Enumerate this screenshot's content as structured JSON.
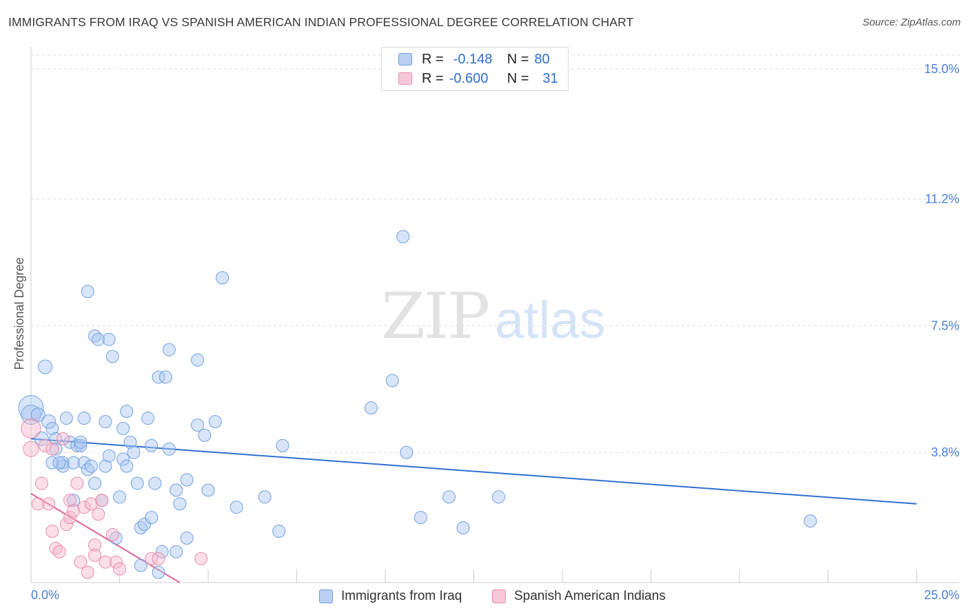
{
  "title": "IMMIGRANTS FROM IRAQ VS SPANISH AMERICAN INDIAN PROFESSIONAL DEGREE CORRELATION CHART",
  "source": "Source: ZipAtlas.com",
  "watermark": {
    "zip": "ZIP",
    "atlas": "atlas"
  },
  "legend": {
    "r_label": "R =",
    "n_label": "N =",
    "rows": [
      {
        "r": "-0.148",
        "n": "80",
        "color": "#a9c6f0",
        "border": "#6f9fe0"
      },
      {
        "r": "-0.600",
        "n": "31",
        "color": "#f6b8cb",
        "border": "#e889a8"
      }
    ]
  },
  "bottom_legend": [
    {
      "label": "Immigrants from Iraq",
      "color": "#b9d0f3",
      "border": "#6f9fe0"
    },
    {
      "label": "Spanish American Indians",
      "color": "#f8c8d6",
      "border": "#e889a8"
    }
  ],
  "chart_data": {
    "type": "scatter",
    "title": "IMMIGRANTS FROM IRAQ VS SPANISH AMERICAN INDIAN PROFESSIONAL DEGREE CORRELATION CHART",
    "xlabel": "",
    "ylabel": "Professional Degree",
    "xlim": [
      0,
      25
    ],
    "ylim": [
      0,
      15.4
    ],
    "x_tick_labels": [
      "0.0%",
      "25.0%"
    ],
    "y_ticks": [
      3.8,
      7.5,
      11.2,
      15.0
    ],
    "y_tick_labels": [
      "3.8%",
      "7.5%",
      "11.2%",
      "15.0%"
    ],
    "grid": true,
    "series": [
      {
        "name": "Immigrants from Iraq",
        "color": "#a9c6f0",
        "stroke": "#6f9fe0",
        "trend": {
          "x": [
            0,
            25
          ],
          "y": [
            4.2,
            2.3
          ],
          "color": "#2e6fd1"
        },
        "points": [
          [
            0.0,
            5.1,
            18
          ],
          [
            0.0,
            4.9,
            14
          ],
          [
            0.2,
            4.9,
            10
          ],
          [
            0.4,
            6.3,
            10
          ],
          [
            0.5,
            4.7,
            10
          ],
          [
            0.3,
            4.2,
            10
          ],
          [
            0.6,
            4.5,
            9
          ],
          [
            0.7,
            4.2,
            9
          ],
          [
            0.6,
            3.5,
            9
          ],
          [
            0.7,
            3.9,
            9
          ],
          [
            0.9,
            3.5,
            9
          ],
          [
            0.9,
            3.4,
            9
          ],
          [
            1.0,
            4.8,
            9
          ],
          [
            1.1,
            4.1,
            9
          ],
          [
            1.2,
            3.5,
            9
          ],
          [
            1.2,
            2.4,
            9
          ],
          [
            1.3,
            4.0,
            9
          ],
          [
            1.4,
            4.0,
            9
          ],
          [
            1.4,
            4.1,
            9
          ],
          [
            1.5,
            3.5,
            9
          ],
          [
            1.5,
            4.8,
            9
          ],
          [
            1.6,
            3.3,
            9
          ],
          [
            1.6,
            8.5,
            9
          ],
          [
            1.7,
            3.4,
            9
          ],
          [
            1.8,
            2.9,
            9
          ],
          [
            1.8,
            7.2,
            9
          ],
          [
            1.9,
            7.1,
            9
          ],
          [
            2.0,
            2.4,
            9
          ],
          [
            2.1,
            3.4,
            9
          ],
          [
            2.1,
            4.7,
            9
          ],
          [
            2.2,
            3.7,
            9
          ],
          [
            2.2,
            7.1,
            9
          ],
          [
            2.3,
            6.6,
            9
          ],
          [
            2.4,
            1.3,
            9
          ],
          [
            2.5,
            2.5,
            9
          ],
          [
            2.6,
            4.5,
            9
          ],
          [
            2.6,
            3.6,
            9
          ],
          [
            2.7,
            3.4,
            9
          ],
          [
            2.7,
            5.0,
            9
          ],
          [
            2.8,
            4.1,
            9
          ],
          [
            2.9,
            3.8,
            9
          ],
          [
            3.0,
            2.9,
            9
          ],
          [
            3.1,
            0.5,
            9
          ],
          [
            3.1,
            1.6,
            9
          ],
          [
            3.2,
            1.7,
            9
          ],
          [
            3.3,
            4.8,
            9
          ],
          [
            3.4,
            4.0,
            9
          ],
          [
            3.4,
            1.9,
            9
          ],
          [
            3.5,
            2.9,
            9
          ],
          [
            3.6,
            0.3,
            9
          ],
          [
            3.6,
            6.0,
            9
          ],
          [
            3.7,
            0.9,
            9
          ],
          [
            3.8,
            6.0,
            9
          ],
          [
            3.9,
            6.8,
            9
          ],
          [
            3.9,
            3.9,
            9
          ],
          [
            4.1,
            0.9,
            9
          ],
          [
            4.1,
            2.7,
            9
          ],
          [
            4.2,
            2.3,
            9
          ],
          [
            4.4,
            1.3,
            9
          ],
          [
            4.4,
            3.0,
            9
          ],
          [
            4.7,
            4.6,
            9
          ],
          [
            4.7,
            6.5,
            9
          ],
          [
            4.9,
            4.3,
            9
          ],
          [
            5.0,
            2.7,
            9
          ],
          [
            5.2,
            4.7,
            9
          ],
          [
            5.4,
            8.9,
            9
          ],
          [
            5.8,
            2.2,
            9
          ],
          [
            6.6,
            2.5,
            9
          ],
          [
            7.0,
            1.5,
            9
          ],
          [
            7.1,
            4.0,
            9
          ],
          [
            9.6,
            5.1,
            9
          ],
          [
            10.2,
            5.9,
            9
          ],
          [
            10.5,
            10.1,
            9
          ],
          [
            10.6,
            3.8,
            9
          ],
          [
            11.0,
            1.9,
            9
          ],
          [
            11.8,
            2.5,
            9
          ],
          [
            12.2,
            1.6,
            9
          ],
          [
            13.2,
            2.5,
            9
          ],
          [
            22.0,
            1.8,
            9
          ],
          [
            0.8,
            3.5,
            9
          ]
        ]
      },
      {
        "name": "Spanish American Indians",
        "color": "#f6b8cb",
        "stroke": "#e889a8",
        "trend": {
          "x": [
            0,
            4.2
          ],
          "y": [
            2.6,
            0.0
          ],
          "color": "#e0609a"
        },
        "points": [
          [
            0.0,
            4.5,
            14
          ],
          [
            0.0,
            3.9,
            11
          ],
          [
            0.2,
            2.3,
            9
          ],
          [
            0.3,
            2.9,
            9
          ],
          [
            0.4,
            4.0,
            9
          ],
          [
            0.5,
            2.3,
            9
          ],
          [
            0.6,
            1.5,
            9
          ],
          [
            0.6,
            3.9,
            9
          ],
          [
            0.7,
            1.0,
            9
          ],
          [
            0.8,
            0.9,
            9
          ],
          [
            0.9,
            4.2,
            9
          ],
          [
            1.0,
            1.7,
            9
          ],
          [
            1.1,
            1.9,
            9
          ],
          [
            1.1,
            2.4,
            9
          ],
          [
            1.2,
            2.1,
            9
          ],
          [
            1.3,
            2.9,
            9
          ],
          [
            1.4,
            0.6,
            9
          ],
          [
            1.5,
            2.2,
            9
          ],
          [
            1.6,
            0.3,
            9
          ],
          [
            1.7,
            2.3,
            9
          ],
          [
            1.8,
            1.1,
            9
          ],
          [
            1.8,
            0.8,
            9
          ],
          [
            1.9,
            2.0,
            9
          ],
          [
            2.0,
            2.4,
            9
          ],
          [
            2.1,
            0.6,
            9
          ],
          [
            2.3,
            1.4,
            9
          ],
          [
            2.4,
            0.6,
            9
          ],
          [
            2.5,
            0.4,
            9
          ],
          [
            3.4,
            0.7,
            9
          ],
          [
            3.6,
            0.7,
            9
          ],
          [
            4.8,
            0.7,
            9
          ]
        ]
      }
    ]
  }
}
